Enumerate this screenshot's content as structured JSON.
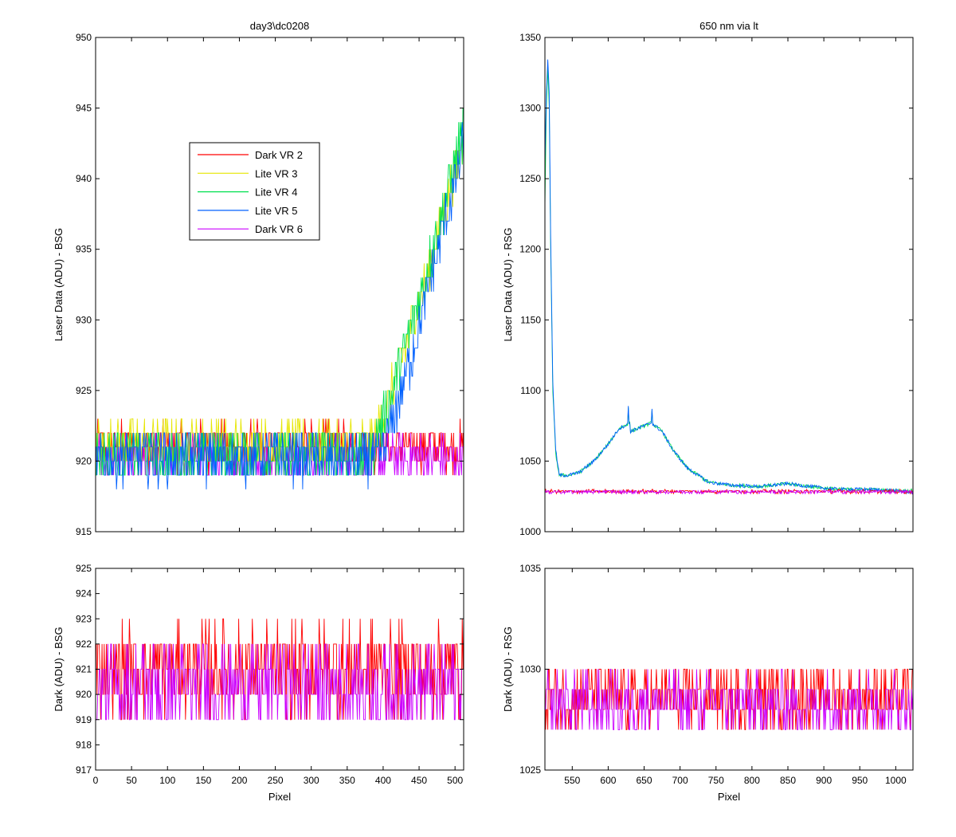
{
  "colors": {
    "dark_vr2": "#ff0000",
    "lite_vr3": "#e6e600",
    "lite_vr4": "#00e050",
    "lite_vr5": "#0060ff",
    "dark_vr6": "#cc00ff",
    "axes": "#000000",
    "background": "#ffffff"
  },
  "chart_data": [
    {
      "id": "top_left",
      "type": "line",
      "title": "day3\\dc0208",
      "xlabel": "",
      "ylabel": "Laser Data (ADU) - BSG",
      "xlim": [
        0,
        512
      ],
      "ylim": [
        915,
        950
      ],
      "xticks": [
        0,
        50,
        100,
        150,
        200,
        250,
        300,
        350,
        400,
        450,
        500
      ],
      "yticks": [
        915,
        920,
        925,
        930,
        935,
        940,
        945,
        950
      ],
      "show_xtick_labels": false,
      "legend_placement": "upper-left-center",
      "legend": [
        "Dark VR 2",
        "Lite VR 3",
        "Lite VR 4",
        "Lite VR 5",
        "Dark VR 6"
      ],
      "series": [
        {
          "name": "Dark VR 2",
          "color_key": "dark_vr2",
          "level": 921,
          "spread": 1.6,
          "ramp": null
        },
        {
          "name": "Dark VR 6",
          "color_key": "dark_vr6",
          "level": 920.2,
          "spread": 1.6,
          "ramp": null
        },
        {
          "name": "Lite VR 3",
          "color_key": "lite_vr3",
          "level": 921.3,
          "spread": 1.6,
          "ramp": {
            "start": 385,
            "end_x": 512,
            "end_value": 943
          }
        },
        {
          "name": "Lite VR 4",
          "color_key": "lite_vr4",
          "level": 920.3,
          "spread": 1.8,
          "ramp": {
            "start": 380,
            "end_x": 512,
            "end_value": 943.5
          }
        },
        {
          "name": "Lite VR 5",
          "color_key": "lite_vr5",
          "level": 920.2,
          "spread": 1.8,
          "ramp": {
            "start": 395,
            "end_x": 512,
            "end_value": 942.5
          }
        }
      ]
    },
    {
      "id": "top_right",
      "type": "line",
      "title": "650 nm via lt",
      "xlabel": "",
      "ylabel": "Laser Data (ADU) - RSG",
      "xlim": [
        512,
        1024
      ],
      "ylim": [
        1000,
        1350
      ],
      "xticks": [
        550,
        600,
        650,
        700,
        750,
        800,
        850,
        900,
        950,
        1000
      ],
      "yticks": [
        1000,
        1050,
        1100,
        1150,
        1200,
        1250,
        1300,
        1350
      ],
      "show_xtick_labels": false,
      "series": [
        {
          "name": "Lite VR 4",
          "color_key": "lite_vr4",
          "profile": [
            [
              512,
              1230
            ],
            [
              514,
              1300
            ],
            [
              516,
              1330
            ],
            [
              518,
              1300
            ],
            [
              520,
              1200
            ],
            [
              523,
              1100
            ],
            [
              527,
              1055
            ],
            [
              532,
              1040
            ],
            [
              545,
              1040
            ],
            [
              560,
              1042
            ],
            [
              580,
              1050
            ],
            [
              600,
              1062
            ],
            [
              615,
              1073
            ],
            [
              630,
              1077
            ],
            [
              631,
              1071
            ],
            [
              660,
              1077
            ],
            [
              675,
              1071
            ],
            [
              690,
              1058
            ],
            [
              710,
              1045
            ],
            [
              740,
              1035
            ],
            [
              770,
              1033
            ],
            [
              810,
              1032
            ],
            [
              850,
              1034
            ],
            [
              880,
              1032
            ],
            [
              920,
              1030
            ],
            [
              960,
              1030
            ],
            [
              1000,
              1029
            ],
            [
              1024,
              1029
            ]
          ],
          "spikes": [
            [
              628,
              1088
            ],
            [
              661,
              1086
            ]
          ]
        },
        {
          "name": "Lite VR 5",
          "color_key": "lite_vr5",
          "profile": [
            [
              512,
              1260
            ],
            [
              514,
              1310
            ],
            [
              516,
              1335
            ],
            [
              518,
              1310
            ],
            [
              520,
              1210
            ],
            [
              523,
              1105
            ],
            [
              527,
              1058
            ],
            [
              532,
              1040
            ],
            [
              545,
              1040
            ],
            [
              560,
              1042
            ],
            [
              580,
              1050
            ],
            [
              600,
              1062
            ],
            [
              615,
              1073
            ],
            [
              630,
              1077
            ],
            [
              631,
              1071
            ],
            [
              660,
              1077
            ],
            [
              675,
              1071
            ],
            [
              690,
              1058
            ],
            [
              710,
              1045
            ],
            [
              740,
              1035
            ],
            [
              770,
              1033
            ],
            [
              810,
              1032
            ],
            [
              850,
              1034
            ],
            [
              880,
              1032
            ],
            [
              920,
              1030
            ],
            [
              960,
              1030
            ],
            [
              1000,
              1029
            ],
            [
              1024,
              1028
            ]
          ],
          "spikes": [
            [
              628,
              1089
            ],
            [
              661,
              1087
            ]
          ]
        },
        {
          "name": "Dark VR 2",
          "color_key": "dark_vr2",
          "level": 1028.5,
          "spread": 1.2
        },
        {
          "name": "Dark VR 6",
          "color_key": "dark_vr6",
          "level": 1028.3,
          "spread": 1.2
        }
      ]
    },
    {
      "id": "bottom_left",
      "type": "line",
      "title": "",
      "xlabel": "Pixel",
      "ylabel": "Dark (ADU) - BSG",
      "xlim": [
        0,
        512
      ],
      "ylim": [
        917,
        925
      ],
      "xticks": [
        0,
        50,
        100,
        150,
        200,
        250,
        300,
        350,
        400,
        450,
        500
      ],
      "yticks": [
        917,
        918,
        919,
        920,
        921,
        922,
        923,
        924,
        925
      ],
      "show_xtick_labels": true,
      "series": [
        {
          "name": "Dark VR 2",
          "color_key": "dark_vr2",
          "level": 921,
          "spread": 1.7
        },
        {
          "name": "Dark VR 6",
          "color_key": "dark_vr6",
          "level": 920.3,
          "spread": 1.6
        }
      ]
    },
    {
      "id": "bottom_right",
      "type": "line",
      "title": "",
      "xlabel": "Pixel",
      "ylabel": "Dark (ADU) - RSG",
      "xlim": [
        512,
        1024
      ],
      "ylim": [
        1025,
        1035
      ],
      "xticks": [
        550,
        600,
        650,
        700,
        750,
        800,
        850,
        900,
        950,
        1000
      ],
      "yticks": [
        1025,
        1030,
        1035
      ],
      "show_xtick_labels": true,
      "series": [
        {
          "name": "Dark VR 2",
          "color_key": "dark_vr2",
          "level": 1028.6,
          "spread": 1.4
        },
        {
          "name": "Dark VR 6",
          "color_key": "dark_vr6",
          "level": 1028.3,
          "spread": 1.4
        }
      ]
    }
  ]
}
